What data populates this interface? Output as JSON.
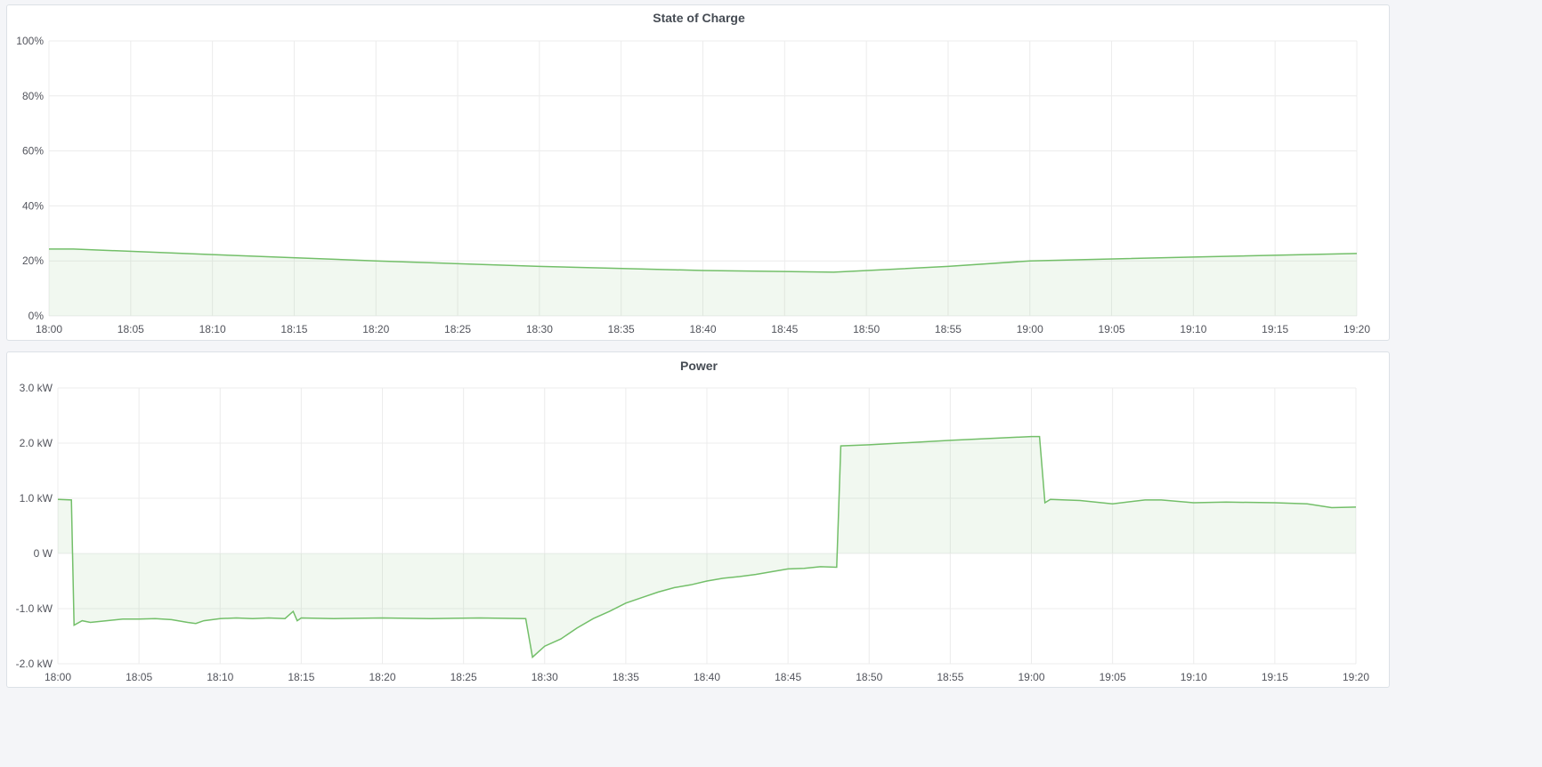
{
  "colors": {
    "line": "#73bf69",
    "fill": "#73bf69",
    "grid": "#ececec",
    "background": "#f4f5f8"
  },
  "chart_data": [
    {
      "type": "area",
      "title": "State of Charge",
      "x_ticks": [
        "18:00",
        "18:05",
        "18:10",
        "18:15",
        "18:20",
        "18:25",
        "18:30",
        "18:35",
        "18:40",
        "18:45",
        "18:50",
        "18:55",
        "19:00",
        "19:05",
        "19:10",
        "19:15",
        "19:20"
      ],
      "y_ticks": [
        "0%",
        "20%",
        "40%",
        "60%",
        "80%",
        "100%"
      ],
      "y_tick_values": [
        0,
        20,
        40,
        60,
        80,
        100
      ],
      "xlim": [
        "18:00",
        "19:20"
      ],
      "ylim": [
        0,
        100
      ],
      "unit": "%",
      "grid": true,
      "series": [
        {
          "points": [
            [
              "18:00:00",
              24.3
            ],
            [
              "18:01:30",
              24.3
            ],
            [
              "18:10:00",
              22.3
            ],
            [
              "18:20:00",
              20.0
            ],
            [
              "18:30:00",
              18.0
            ],
            [
              "18:40:00",
              16.5
            ],
            [
              "18:48:00",
              15.9
            ],
            [
              "18:55:00",
              18.0
            ],
            [
              "19:00:00",
              20.0
            ],
            [
              "19:10:00",
              21.4
            ],
            [
              "19:20:00",
              22.7
            ]
          ]
        }
      ]
    },
    {
      "type": "area",
      "title": "Power",
      "x_ticks": [
        "18:00",
        "18:05",
        "18:10",
        "18:15",
        "18:20",
        "18:25",
        "18:30",
        "18:35",
        "18:40",
        "18:45",
        "18:50",
        "18:55",
        "19:00",
        "19:05",
        "19:10",
        "19:15",
        "19:20"
      ],
      "y_ticks": [
        "-2.0 kW",
        "-1.0 kW",
        "0 W",
        "1.0 kW",
        "2.0 kW",
        "3.0 kW"
      ],
      "y_tick_values": [
        -2,
        -1,
        0,
        1,
        2,
        3
      ],
      "xlim": [
        "18:00",
        "19:20"
      ],
      "ylim": [
        -2,
        3
      ],
      "unit": "kW",
      "grid": true,
      "series": [
        {
          "points": [
            [
              "18:00:00",
              0.98
            ],
            [
              "18:00:50",
              0.97
            ],
            [
              "18:01:00",
              -1.3
            ],
            [
              "18:01:30",
              -1.22
            ],
            [
              "18:02:00",
              -1.25
            ],
            [
              "18:03:00",
              -1.22
            ],
            [
              "18:04:00",
              -1.19
            ],
            [
              "18:05:00",
              -1.19
            ],
            [
              "18:06:00",
              -1.18
            ],
            [
              "18:07:00",
              -1.2
            ],
            [
              "18:08:00",
              -1.25
            ],
            [
              "18:08:30",
              -1.27
            ],
            [
              "18:09:00",
              -1.22
            ],
            [
              "18:10:00",
              -1.18
            ],
            [
              "18:11:00",
              -1.17
            ],
            [
              "18:12:00",
              -1.18
            ],
            [
              "18:13:00",
              -1.17
            ],
            [
              "18:14:00",
              -1.18
            ],
            [
              "18:14:30",
              -1.05
            ],
            [
              "18:14:45",
              -1.22
            ],
            [
              "18:15:00",
              -1.17
            ],
            [
              "18:17:00",
              -1.18
            ],
            [
              "18:20:00",
              -1.17
            ],
            [
              "18:23:00",
              -1.18
            ],
            [
              "18:26:00",
              -1.17
            ],
            [
              "18:28:50",
              -1.18
            ],
            [
              "18:29:15",
              -1.88
            ],
            [
              "18:30:00",
              -1.68
            ],
            [
              "18:31:00",
              -1.55
            ],
            [
              "18:32:00",
              -1.35
            ],
            [
              "18:33:00",
              -1.18
            ],
            [
              "18:34:00",
              -1.05
            ],
            [
              "18:35:00",
              -0.9
            ],
            [
              "18:36:00",
              -0.8
            ],
            [
              "18:37:00",
              -0.7
            ],
            [
              "18:38:00",
              -0.62
            ],
            [
              "18:39:00",
              -0.57
            ],
            [
              "18:40:00",
              -0.5
            ],
            [
              "18:41:00",
              -0.45
            ],
            [
              "18:42:00",
              -0.42
            ],
            [
              "18:43:00",
              -0.38
            ],
            [
              "18:44:00",
              -0.33
            ],
            [
              "18:45:00",
              -0.28
            ],
            [
              "18:46:00",
              -0.27
            ],
            [
              "18:47:00",
              -0.24
            ],
            [
              "18:48:00",
              -0.25
            ],
            [
              "18:48:15",
              1.95
            ],
            [
              "18:50:00",
              1.97
            ],
            [
              "18:55:00",
              2.05
            ],
            [
              "19:00:00",
              2.12
            ],
            [
              "19:00:30",
              2.12
            ],
            [
              "19:00:50",
              0.92
            ],
            [
              "19:01:10",
              0.98
            ],
            [
              "19:03:00",
              0.96
            ],
            [
              "19:05:00",
              0.9
            ],
            [
              "19:07:00",
              0.97
            ],
            [
              "19:08:00",
              0.97
            ],
            [
              "19:10:00",
              0.92
            ],
            [
              "19:12:00",
              0.93
            ],
            [
              "19:15:00",
              0.92
            ],
            [
              "19:17:00",
              0.9
            ],
            [
              "19:18:30",
              0.83
            ],
            [
              "19:20:00",
              0.84
            ]
          ]
        }
      ]
    }
  ]
}
